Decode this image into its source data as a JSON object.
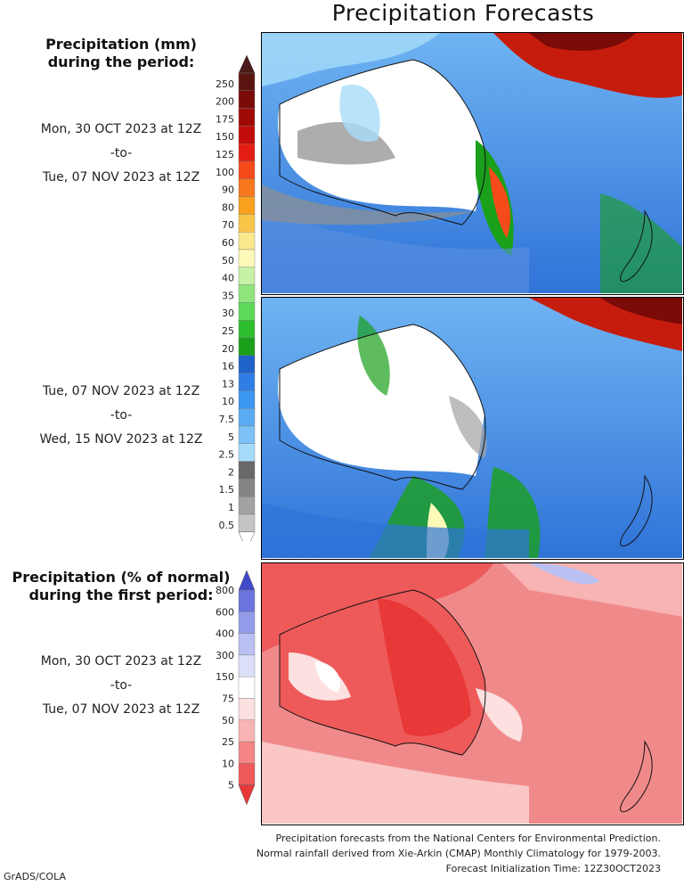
{
  "title": "Precipitation Forecasts",
  "precip_legend": {
    "heading_line1": "Precipitation (mm)",
    "heading_line2": "during the period:",
    "ticks": [
      "250",
      "200",
      "175",
      "150",
      "125",
      "100",
      "90",
      "80",
      "70",
      "60",
      "50",
      "40",
      "35",
      "30",
      "25",
      "20",
      "16",
      "13",
      "10",
      "7.5",
      "5",
      "2.5",
      "2",
      "1.5",
      "1",
      "0.5"
    ],
    "colors": [
      "#5a1410",
      "#7a0b06",
      "#9f0a06",
      "#c20d0a",
      "#e41e12",
      "#f54a19",
      "#f7781d",
      "#f9a11f",
      "#fac64a",
      "#fbe98d",
      "#fdfab9",
      "#c7f2a6",
      "#8fe57b",
      "#5ed95a",
      "#2fbf2e",
      "#1aa01b",
      "#1f62c8",
      "#2f7ee6",
      "#3b97f0",
      "#5aaaf4",
      "#7cc1f7",
      "#a6dcfa",
      "#686868",
      "#858585",
      "#a2a2a2",
      "#c4c4c4",
      "#ffffff"
    ],
    "top_arrow_color": "#4a1b18"
  },
  "periods": [
    {
      "start": "Mon, 30 OCT 2023 at 12Z",
      "sep": "-to-",
      "end": "Tue, 07 NOV 2023 at 12Z"
    },
    {
      "start": "Tue, 07 NOV 2023 at 12Z",
      "sep": "-to-",
      "end": "Wed, 15 NOV 2023 at 12Z"
    }
  ],
  "pct_legend": {
    "heading_line1": "Precipitation (% of normal)",
    "heading_line2": "during the first period:",
    "ticks": [
      "800",
      "600",
      "400",
      "300",
      "150",
      "75",
      "50",
      "25",
      "10",
      "5"
    ],
    "colors": [
      "#3e4ac9",
      "#6a74dc",
      "#949ce9",
      "#bac0f2",
      "#dcdff8",
      "#ffffff",
      "#fde0e0",
      "#f8b3b3",
      "#f38585",
      "#ee5a5a",
      "#e83838"
    ],
    "period": {
      "start": "Mon, 30 OCT 2023 at 12Z",
      "sep": "-to-",
      "end": "Tue, 07 NOV 2023 at 12Z"
    }
  },
  "footer": {
    "line1": "Precipitation forecasts from the National Centers for Environmental Prediction.",
    "line2": "Normal rainfall derived from Xie-Arkin (CMAP) Monthly Climatology for 1979-2003.",
    "line3": "Forecast Initialization Time: 12Z30OCT2023"
  },
  "credit": "GrADS/COLA",
  "chart_data": [
    {
      "type": "heatmap",
      "title": "",
      "units": "mm",
      "period": "Mon, 30 OCT 2023 at 12Z -to- Tue, 07 NOV 2023 at 12Z",
      "color_levels": [
        0.5,
        1,
        1.5,
        2,
        2.5,
        5,
        7.5,
        10,
        13,
        16,
        20,
        25,
        30,
        35,
        40,
        50,
        60,
        70,
        80,
        90,
        100,
        125,
        150,
        175,
        200,
        250
      ]
    },
    {
      "type": "heatmap",
      "title": "",
      "units": "mm",
      "period": "Tue, 07 NOV 2023 at 12Z -to- Wed, 15 NOV 2023 at 12Z",
      "color_levels": [
        0.5,
        1,
        1.5,
        2,
        2.5,
        5,
        7.5,
        10,
        13,
        16,
        20,
        25,
        30,
        35,
        40,
        50,
        60,
        70,
        80,
        90,
        100,
        125,
        150,
        175,
        200,
        250
      ]
    },
    {
      "type": "heatmap",
      "title": "",
      "units": "% of normal",
      "period": "Mon, 30 OCT 2023 at 12Z -to- Tue, 07 NOV 2023 at 12Z",
      "color_levels": [
        5,
        10,
        25,
        50,
        75,
        150,
        300,
        400,
        600,
        800
      ]
    }
  ]
}
